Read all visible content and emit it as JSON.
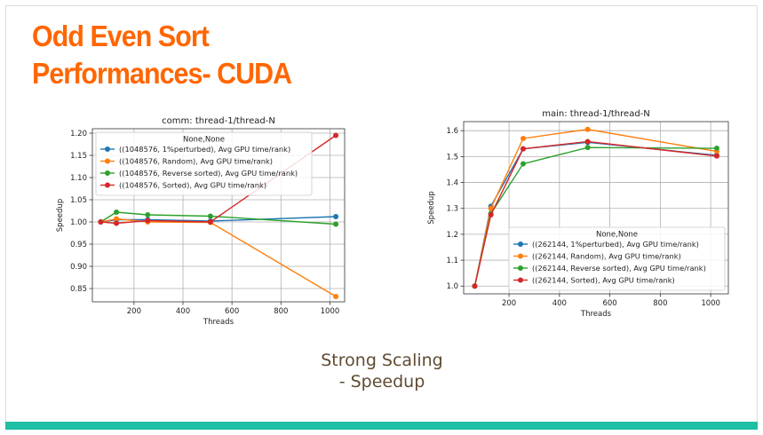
{
  "slide": {
    "title_line1": "Odd Even Sort",
    "title_line2": "Performances- CUDA",
    "caption_line1": "Strong Scaling",
    "caption_line2": "- Speedup"
  },
  "colors": {
    "title": "#ff6600",
    "caption": "#5f4b32",
    "bottom_bar": "#1fbfa5",
    "series": [
      "#1f77b4",
      "#ff7f0e",
      "#2ca02c",
      "#d62728"
    ]
  },
  "chart_data": [
    {
      "type": "line",
      "title": "comm: thread-1/thread-N",
      "xlabel": "Threads",
      "ylabel": "Speedup",
      "xlim": [
        30,
        1060
      ],
      "ylim": [
        0.82,
        1.21
      ],
      "xticks": [
        200,
        400,
        600,
        800,
        1000
      ],
      "yticks": [
        0.85,
        0.9,
        0.95,
        1.0,
        1.05,
        1.1,
        1.15,
        1.2
      ],
      "ytick_labels": [
        "0.85",
        "0.90",
        "0.95",
        "1.00",
        "1.05",
        "1.10",
        "1.15",
        "1.20"
      ],
      "grid": true,
      "legend_title": "None,None",
      "legend_position": "upper-left",
      "x": [
        64,
        128,
        256,
        512,
        1024
      ],
      "series": [
        {
          "name": "((1048576, 1%perturbed), Avg GPU time/rank)",
          "color": "#1f77b4",
          "values": [
            1.0,
            1.005,
            1.005,
            1.002,
            1.012
          ]
        },
        {
          "name": "((1048576, Random), Avg GPU time/rank)",
          "color": "#ff7f0e",
          "values": [
            1.0,
            1.007,
            1.0,
            0.999,
            0.832
          ]
        },
        {
          "name": "((1048576, Reverse sorted), Avg GPU time/rank)",
          "color": "#2ca02c",
          "values": [
            1.0,
            1.022,
            1.016,
            1.013,
            0.995
          ]
        },
        {
          "name": "((1048576, Sorted), Avg GPU time/rank)",
          "color": "#d62728",
          "values": [
            1.0,
            0.997,
            1.003,
            1.0,
            1.195
          ]
        }
      ]
    },
    {
      "type": "line",
      "title": "main: thread-1/thread-N",
      "xlabel": "Threads",
      "ylabel": "Speedup",
      "xlim": [
        20,
        1070
      ],
      "ylim": [
        0.97,
        1.635
      ],
      "xticks": [
        200,
        400,
        600,
        800,
        1000
      ],
      "yticks": [
        1.0,
        1.1,
        1.2,
        1.3,
        1.4,
        1.5,
        1.6
      ],
      "ytick_labels": [
        "1.0",
        "1.1",
        "1.2",
        "1.3",
        "1.4",
        "1.5",
        "1.6"
      ],
      "grid": true,
      "legend_title": "None,None",
      "legend_position": "lower-right",
      "x": [
        64,
        128,
        256,
        512,
        1024
      ],
      "series": [
        {
          "name": "((262144, 1%perturbed), Avg GPU time/rank)",
          "color": "#1f77b4",
          "values": [
            1.0,
            1.308,
            1.53,
            1.555,
            1.505
          ]
        },
        {
          "name": "((262144, Random), Avg GPU time/rank)",
          "color": "#ff7f0e",
          "values": [
            1.0,
            1.3,
            1.57,
            1.605,
            1.52
          ]
        },
        {
          "name": "((262144, Reverse sorted), Avg GPU time/rank)",
          "color": "#2ca02c",
          "values": [
            1.0,
            1.28,
            1.472,
            1.535,
            1.532
          ]
        },
        {
          "name": "((262144, Sorted), Avg GPU time/rank)",
          "color": "#d62728",
          "values": [
            1.0,
            1.275,
            1.53,
            1.558,
            1.502
          ]
        }
      ]
    }
  ]
}
